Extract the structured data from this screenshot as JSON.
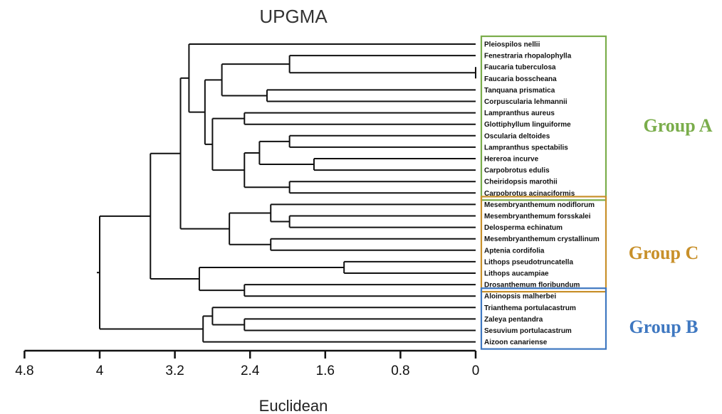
{
  "chart_data": {
    "type": "dendrogram",
    "title": "UPGMA",
    "xlabel": "Euclidean",
    "xlim": [
      4.8,
      0
    ],
    "ticks": [
      4.8,
      4,
      3.2,
      2.4,
      1.6,
      0.8,
      0
    ],
    "tick_labels": [
      "4.8",
      "4",
      "3.2",
      "2.4",
      "1.6",
      "0.8",
      "0"
    ],
    "leaves": [
      "Pleiospilos nellii",
      "Fenestraria rhopalophylla",
      "Faucaria tuberculosa",
      "Faucaria bosscheana",
      "Tanquana prismatica",
      "Corpuscularia lehmannii",
      "Lampranthus aureus",
      "Glottiphyllum linguiforme",
      "Oscularia deltoides",
      "Lampranthus spectabilis",
      "Hereroa incurve",
      "Carpobrotus edulis",
      "Cheiridopsis marothii",
      "Carpobrotus acinaciformis",
      "Mesembryanthemum nodiflorum",
      "Mesembryanthemum forsskalei",
      "Delosperma echinatum",
      "Mesembryanthemum crystallinum",
      "Aptenia cordifolia",
      "Lithops pseudotruncatella",
      "Lithops aucampiae",
      "Drosanthemum floribundum",
      "Aloinopsis malherbei",
      "Trianthema portulacastrum",
      "Zaleya pentandra",
      "Sesuvium portulacastrum",
      "Aizoon canariense"
    ],
    "merges": [
      {
        "id": "n1",
        "a": "L2",
        "b": "L3",
        "height": 0.0
      },
      {
        "id": "n2",
        "a": "L1",
        "b": "n1",
        "height": 1.98
      },
      {
        "id": "n3",
        "a": "L4",
        "b": "L5",
        "height": 2.22
      },
      {
        "id": "n4",
        "a": "n2",
        "b": "n3",
        "height": 2.7
      },
      {
        "id": "n5",
        "a": "L6",
        "b": "L7",
        "height": 2.46
      },
      {
        "id": "n6",
        "a": "L8",
        "b": "L9",
        "height": 1.98
      },
      {
        "id": "n7",
        "a": "L10",
        "b": "L11",
        "height": 1.72
      },
      {
        "id": "n8",
        "a": "n6",
        "b": "n7",
        "height": 2.3
      },
      {
        "id": "n9",
        "a": "L12",
        "b": "L13",
        "height": 1.98
      },
      {
        "id": "n10",
        "a": "n8",
        "b": "n9",
        "height": 2.46
      },
      {
        "id": "n11",
        "a": "n5",
        "b": "n10",
        "height": 2.8
      },
      {
        "id": "n12",
        "a": "n4",
        "b": "n11",
        "height": 2.88
      },
      {
        "id": "n13",
        "a": "L0",
        "b": "n12",
        "height": 3.05
      },
      {
        "id": "n14",
        "a": "L15",
        "b": "L16",
        "height": 1.98
      },
      {
        "id": "n15",
        "a": "L14",
        "b": "n14",
        "height": 2.18
      },
      {
        "id": "n16",
        "a": "L17",
        "b": "L18",
        "height": 2.18
      },
      {
        "id": "n17",
        "a": "n15",
        "b": "n16",
        "height": 2.62
      },
      {
        "id": "n18",
        "a": "n13",
        "b": "n17",
        "height": 3.14
      },
      {
        "id": "n19",
        "a": "L19",
        "b": "L20",
        "height": 1.4
      },
      {
        "id": "n20",
        "a": "L21",
        "b": "L22",
        "height": 2.46
      },
      {
        "id": "n21",
        "a": "n19",
        "b": "n20",
        "height": 2.94
      },
      {
        "id": "n22",
        "a": "n18",
        "b": "n21",
        "height": 3.46
      },
      {
        "id": "n23",
        "a": "L25",
        "b": "L24",
        "height": 2.46
      },
      {
        "id": "n24",
        "a": "L23",
        "b": "n23",
        "height": 2.8
      },
      {
        "id": "n25",
        "a": "n24",
        "b": "L26",
        "height": 2.9
      },
      {
        "id": "n26",
        "a": "n22",
        "b": "n25",
        "height": 4.0
      }
    ],
    "groups": [
      {
        "name": "Group A",
        "first_leaf": 0,
        "last_leaf": 13,
        "color": "#7aad4b"
      },
      {
        "name": "Group C",
        "first_leaf": 14,
        "last_leaf": 21,
        "color": "#c8902a"
      },
      {
        "name": "Group B",
        "first_leaf": 22,
        "last_leaf": 26,
        "color": "#3f78c1"
      }
    ]
  }
}
